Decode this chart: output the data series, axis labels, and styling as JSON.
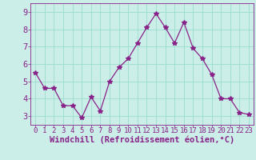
{
  "x": [
    0,
    1,
    2,
    3,
    4,
    5,
    6,
    7,
    8,
    9,
    10,
    11,
    12,
    13,
    14,
    15,
    16,
    17,
    18,
    19,
    20,
    21,
    22,
    23
  ],
  "y": [
    5.5,
    4.6,
    4.6,
    3.6,
    3.6,
    2.9,
    4.1,
    3.3,
    5.0,
    5.8,
    6.3,
    7.2,
    8.1,
    8.9,
    8.1,
    7.2,
    8.4,
    6.9,
    6.3,
    5.4,
    4.0,
    4.0,
    3.2,
    3.1
  ],
  "line_color": "#882288",
  "marker": "*",
  "marker_size": 4,
  "bg_color": "#cceee8",
  "grid_color": "#99ddcc",
  "xlabel": "Windchill (Refroidissement éolien,°C)",
  "xlabel_color": "#882288",
  "xlabel_fontsize": 7.5,
  "tick_color": "#882288",
  "tick_fontsize": 6.5,
  "ytick_fontsize": 7.5,
  "ylim": [
    2.5,
    9.5
  ],
  "xlim": [
    -0.5,
    23.5
  ],
  "yticks": [
    3,
    4,
    5,
    6,
    7,
    8,
    9
  ],
  "xticks": [
    0,
    1,
    2,
    3,
    4,
    5,
    6,
    7,
    8,
    9,
    10,
    11,
    12,
    13,
    14,
    15,
    16,
    17,
    18,
    19,
    20,
    21,
    22,
    23
  ]
}
